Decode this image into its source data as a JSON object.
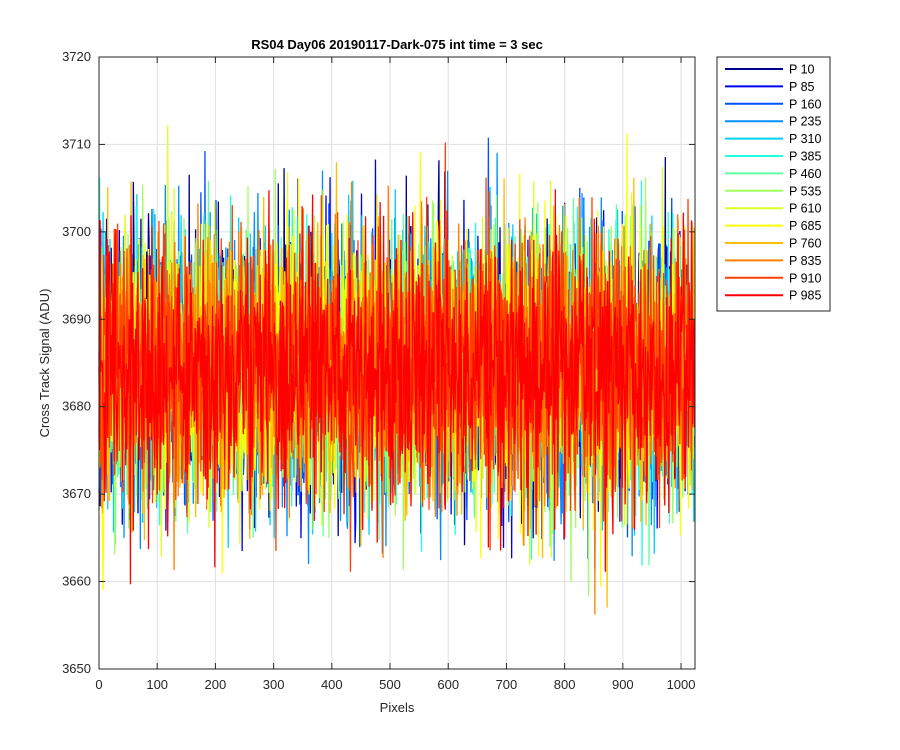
{
  "chart_data": {
    "type": "line",
    "title": "RS04 Day06 20190117-Dark-075 int time = 3 sec",
    "xlabel": "Pixels",
    "ylabel": "Cross Track Signal (ADU)",
    "xlim": [
      0,
      1024
    ],
    "ylim": [
      3650,
      3720
    ],
    "x_ticks": [
      0,
      100,
      200,
      300,
      400,
      500,
      600,
      700,
      800,
      900,
      1000
    ],
    "y_ticks": [
      3650,
      3660,
      3670,
      3680,
      3690,
      3700,
      3710,
      3720
    ],
    "grid": true,
    "legend_position": "outside-top-right",
    "series": [
      {
        "name": "P 10",
        "color": "#00008f",
        "mean": 3684.5,
        "spread": 7.5
      },
      {
        "name": "P 85",
        "color": "#0000ef",
        "mean": 3684.5,
        "spread": 7.5
      },
      {
        "name": "P 160",
        "color": "#0050ff",
        "mean": 3684.5,
        "spread": 7.5
      },
      {
        "name": "P 235",
        "color": "#008fff",
        "mean": 3684.5,
        "spread": 7.5
      },
      {
        "name": "P 310",
        "color": "#00cfff",
        "mean": 3684.5,
        "spread": 7.5
      },
      {
        "name": "P 385",
        "color": "#20ffdf",
        "mean": 3684.5,
        "spread": 7.5
      },
      {
        "name": "P 460",
        "color": "#60ff9f",
        "mean": 3684.5,
        "spread": 7.5
      },
      {
        "name": "P 535",
        "color": "#9fff60",
        "mean": 3684.5,
        "spread": 7.5
      },
      {
        "name": "P 610",
        "color": "#dfff20",
        "mean": 3684.5,
        "spread": 7.5
      },
      {
        "name": "P 685",
        "color": "#ffff00",
        "mean": 3684.5,
        "spread": 7.5
      },
      {
        "name": "P 760",
        "color": "#ffbf00",
        "mean": 3684.5,
        "spread": 7.5
      },
      {
        "name": "P 835",
        "color": "#ff8000",
        "mean": 3684.5,
        "spread": 7.5
      },
      {
        "name": "P 910",
        "color": "#ff4000",
        "mean": 3684.5,
        "spread": 7.5
      },
      {
        "name": "P 985",
        "color": "#ff0000",
        "mean": 3684.5,
        "spread": 7.5
      }
    ]
  }
}
